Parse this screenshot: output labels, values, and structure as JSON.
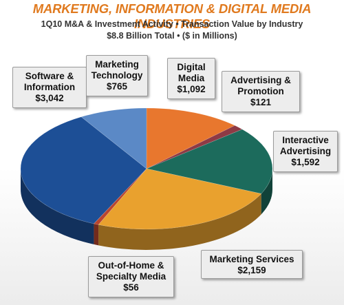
{
  "colors": {
    "title": "#e07a1f",
    "background": "#ffffff"
  },
  "header": {
    "title": "MARKETING, INFORMATION & DIGITAL MEDIA INDUSTRIES",
    "subtitle_line1": "1Q10 M&A & Investment Activity • Transaction Value by Industry",
    "subtitle_line2": "$8.8 Billion Total • ($ in Millions)"
  },
  "chart_data": {
    "type": "pie",
    "title": "MARKETING, INFORMATION & DIGITAL MEDIA INDUSTRIES",
    "subtitle": "1Q10 M&A & Investment Activity • Transaction Value by Industry • $8.8 Billion Total • ($ in Millions)",
    "style": "3d",
    "unit": "$ in Millions",
    "slices": [
      {
        "label": "Digital Media",
        "value": 1092,
        "value_label": "$1,092",
        "color": "#e8772e"
      },
      {
        "label": "Advertising & Promotion",
        "value": 121,
        "value_label": "$121",
        "color": "#8e3a45"
      },
      {
        "label": "Interactive Advertising",
        "value": 1592,
        "value_label": "$1,592",
        "color": "#1c6b5c"
      },
      {
        "label": "Marketing Services",
        "value": 2159,
        "value_label": "$2,159",
        "color": "#e9a12e"
      },
      {
        "label": "Out-of-Home & Specialty Media",
        "value": 56,
        "value_label": "$56",
        "color": "#b8452f"
      },
      {
        "label": "Software & Information",
        "value": 3042,
        "value_label": "$3,042",
        "color": "#1d4f96"
      },
      {
        "label": "Marketing Technology",
        "value": 765,
        "value_label": "$765",
        "color": "#5b89c6"
      }
    ],
    "callouts": {
      "software": {
        "name": "Software &\nInformation",
        "value": "$3,042"
      },
      "mtech": {
        "name": "Marketing\nTechnology",
        "value": "$765"
      },
      "digital": {
        "name": "Digital\nMedia",
        "value": "$1,092"
      },
      "adv": {
        "name": "Advertising &\nPromotion",
        "value": "$121"
      },
      "interactive": {
        "name": "Interactive\nAdvertising",
        "value": "$1,592"
      },
      "mservices": {
        "name": "Marketing Services",
        "value": "$2,159"
      },
      "ooh": {
        "name": "Out-of-Home &\nSpecialty Media",
        "value": "$56"
      }
    }
  }
}
